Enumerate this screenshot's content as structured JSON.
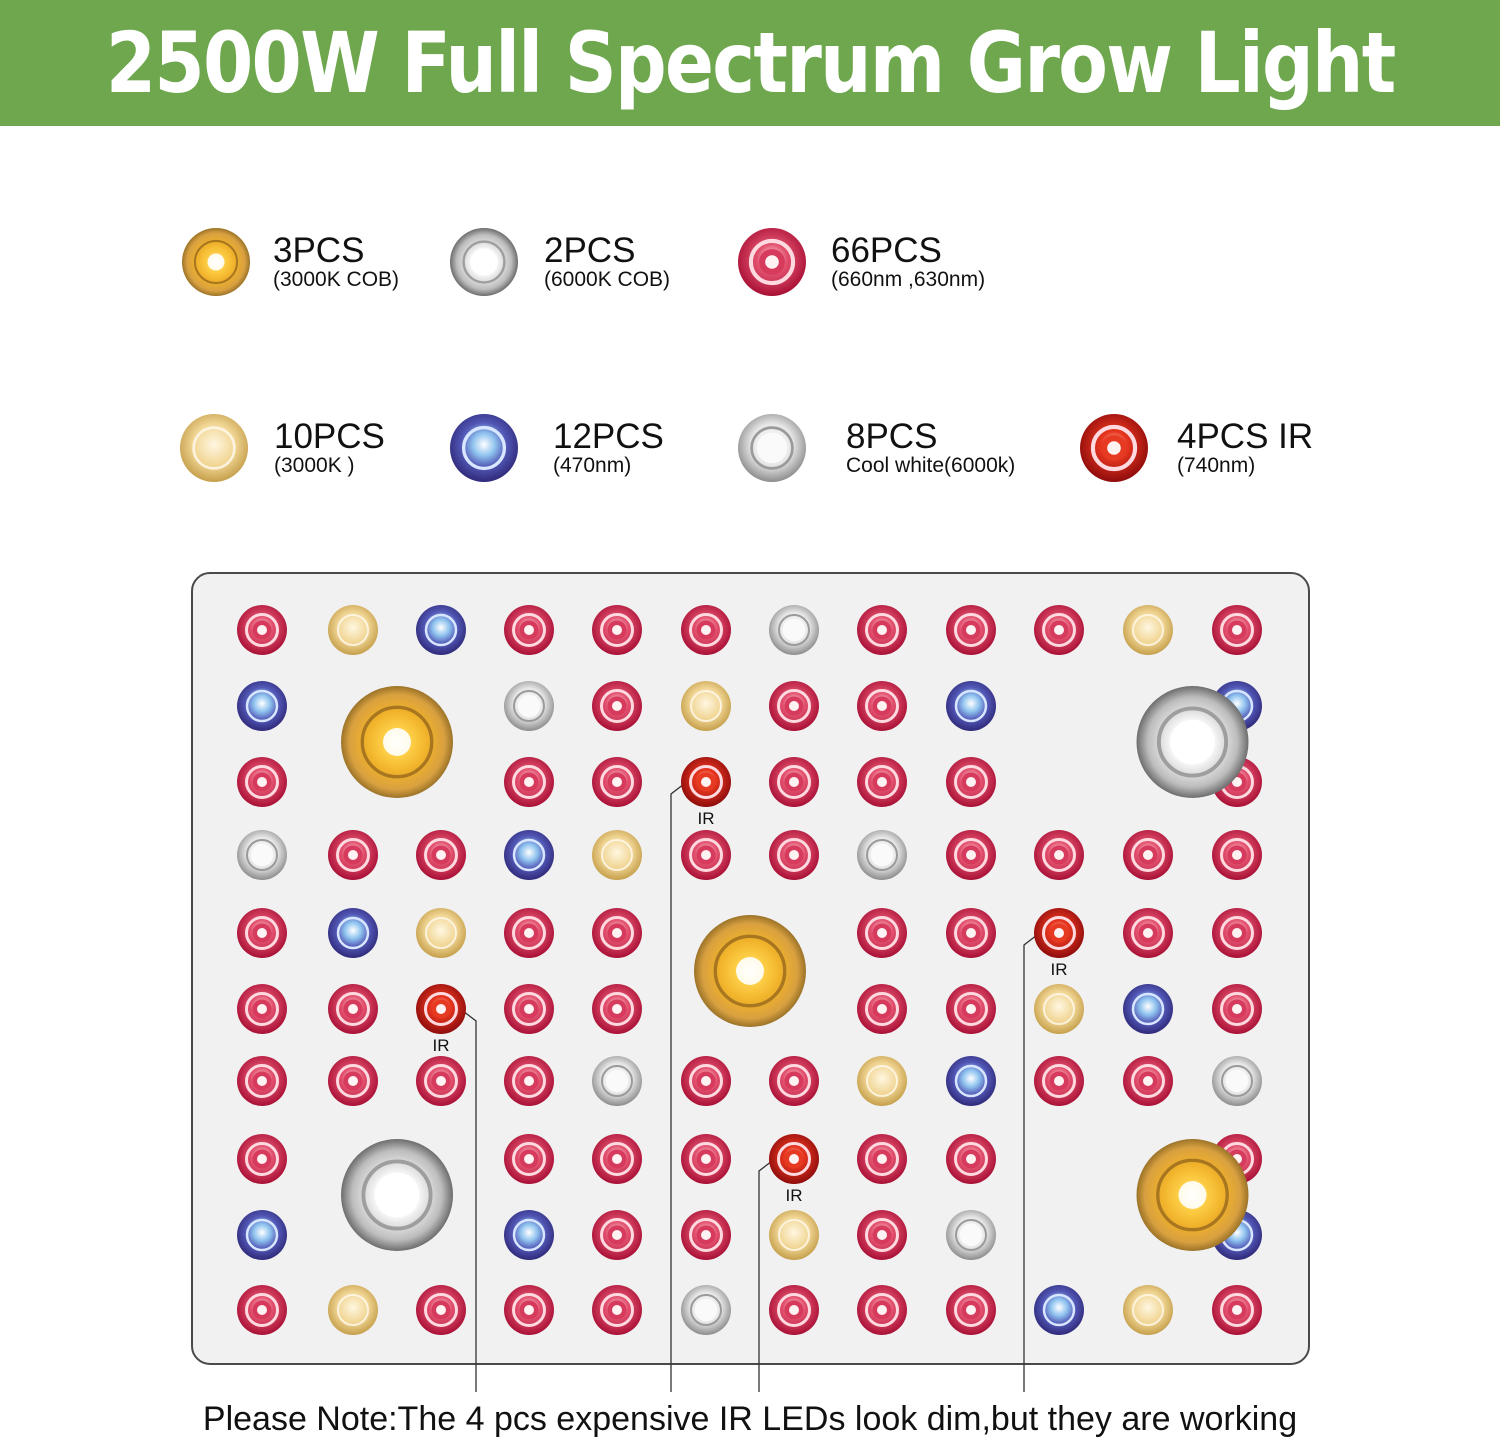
{
  "title": "2500W Full Spectrum Grow Light",
  "colors": {
    "banner": "#6ea74e"
  },
  "legend": [
    {
      "type": "cob-warm",
      "qty": "3PCS",
      "desc": "(3000K COB)"
    },
    {
      "type": "cob-white",
      "qty": "2PCS",
      "desc": "(6000K COB)"
    },
    {
      "type": "red",
      "qty": "66PCS",
      "desc": "(660nm ,630nm)"
    },
    {
      "type": "warm",
      "qty": "10PCS",
      "desc": "(3000K )"
    },
    {
      "type": "blue",
      "qty": "12PCS",
      "desc": "(470nm)"
    },
    {
      "type": "white",
      "qty": "8PCS",
      "desc": "Cool white(6000k)"
    },
    {
      "type": "ir",
      "qty": "4PCS IR",
      "desc": "(740nm)"
    }
  ],
  "board": {
    "grid": [
      "RWBRRRCRRRWR",
      "B..CRWRRB..B",
      "R..RRIRRR..R",
      "CRRBWRRCRRRR",
      "RBWRR..RRIRR",
      "RRIRR..RRWBR",
      "RRRRCRRWBRRC",
      "R..RRRIRR..R",
      "B..BRRWRC..B",
      "RWRRRCRRRBWR"
    ],
    "cobs": [
      {
        "type": "cob-warm",
        "row": 1,
        "col": 1
      },
      {
        "type": "cob-white",
        "row": 1,
        "col": 10
      },
      {
        "type": "cob-warm",
        "row": 4,
        "col": 5
      },
      {
        "type": "cob-white",
        "row": 7,
        "col": 1
      },
      {
        "type": "cob-warm",
        "row": 7,
        "col": 10
      }
    ],
    "ir_label": "IR"
  },
  "note": "Please Note:The 4 pcs expensive IR LEDs look dim,but they are working"
}
